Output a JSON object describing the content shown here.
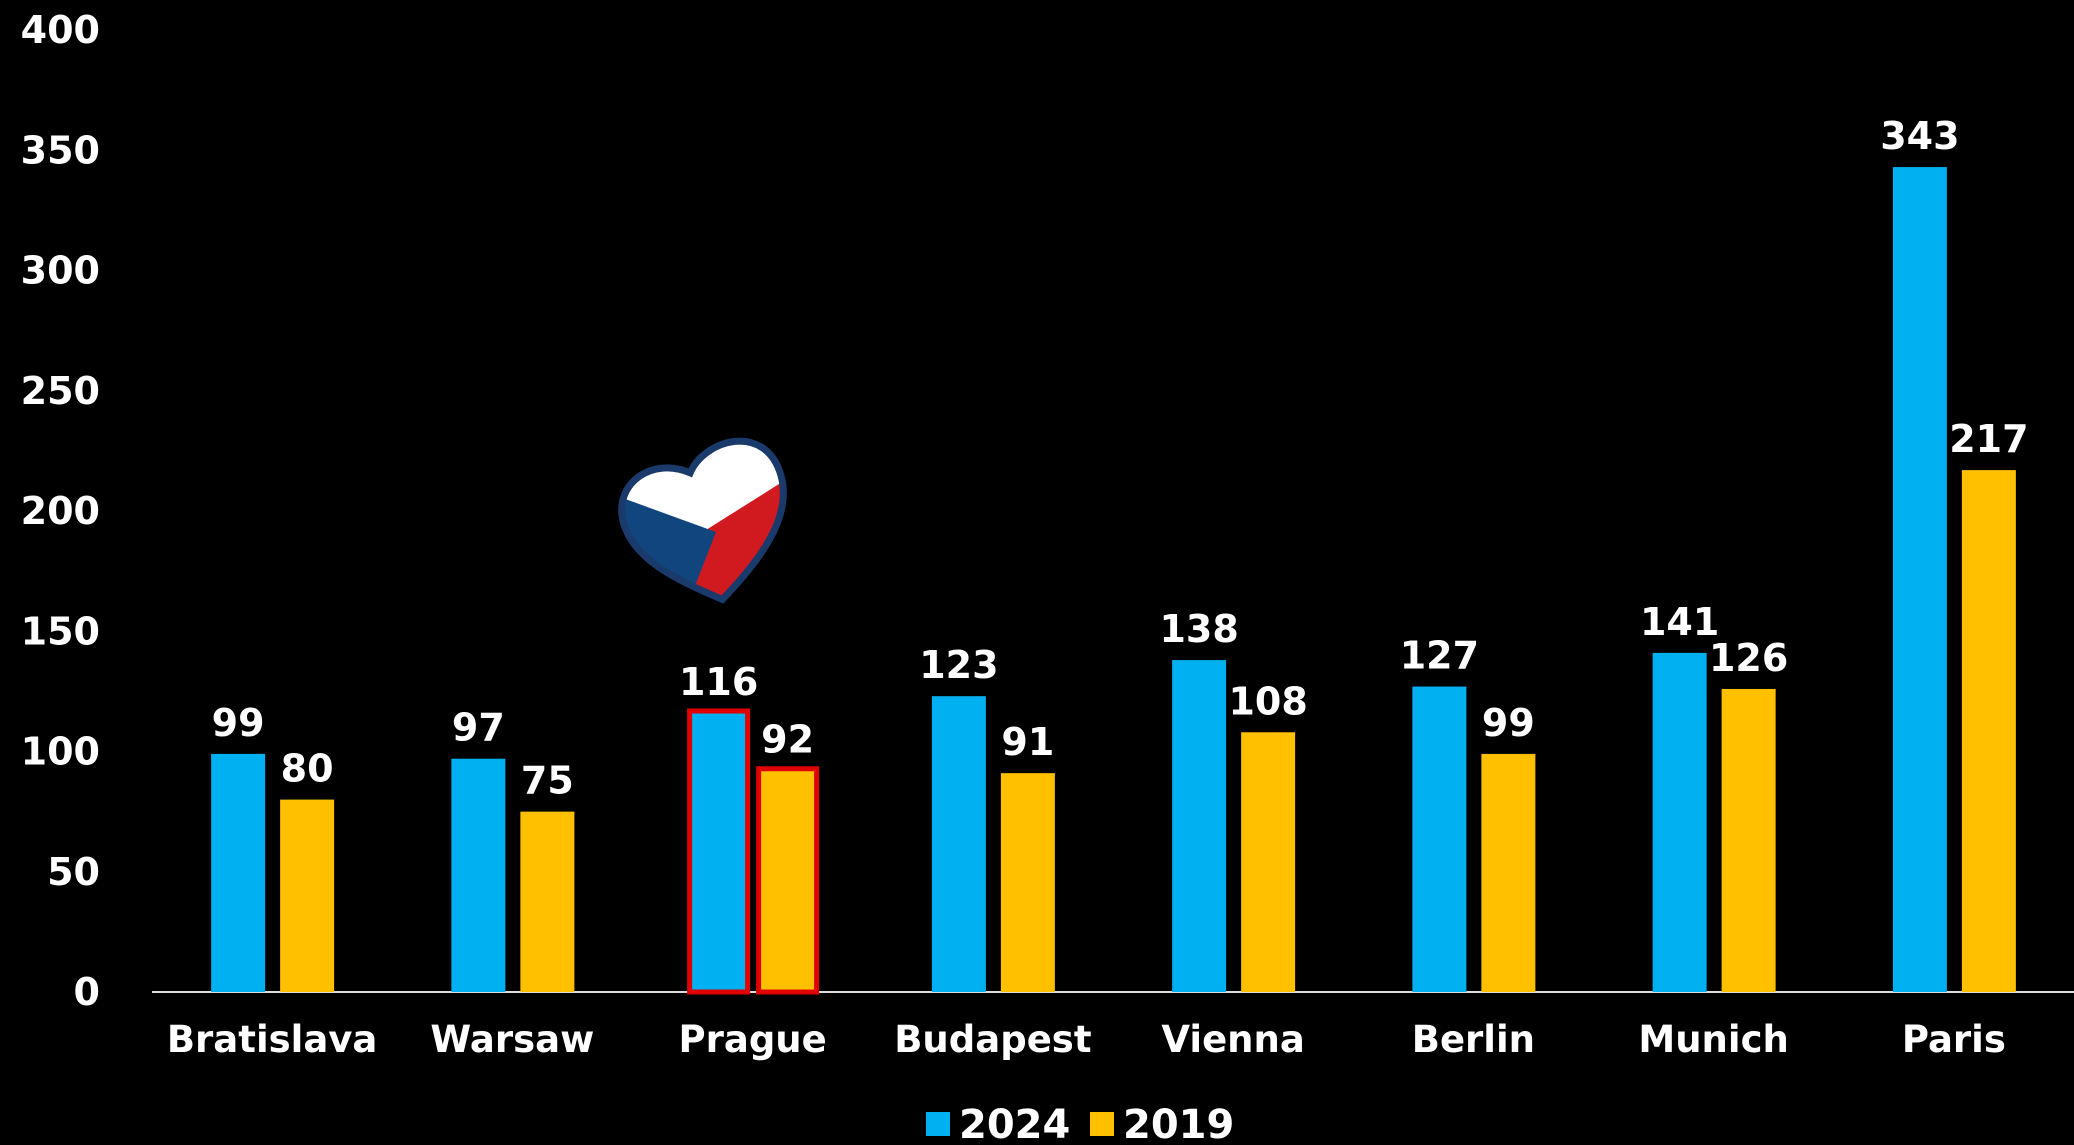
{
  "chart_data": {
    "type": "bar",
    "categories": [
      "Bratislava",
      "Warsaw",
      "Prague",
      "Budapest",
      "Vienna",
      "Berlin",
      "Munich",
      "Paris"
    ],
    "series": [
      {
        "name": "2024",
        "color": "#00b0f0",
        "values": [
          99,
          97,
          116,
          123,
          138,
          127,
          141,
          343
        ]
      },
      {
        "name": "2019",
        "color": "#ffc000",
        "values": [
          80,
          75,
          92,
          91,
          108,
          99,
          126,
          217
        ]
      }
    ],
    "ylim": [
      0,
      400
    ],
    "yticks": [
      0,
      50,
      100,
      150,
      200,
      250,
      300,
      350,
      400
    ],
    "highlight": "Prague",
    "highlight_color": "#e00000"
  }
}
